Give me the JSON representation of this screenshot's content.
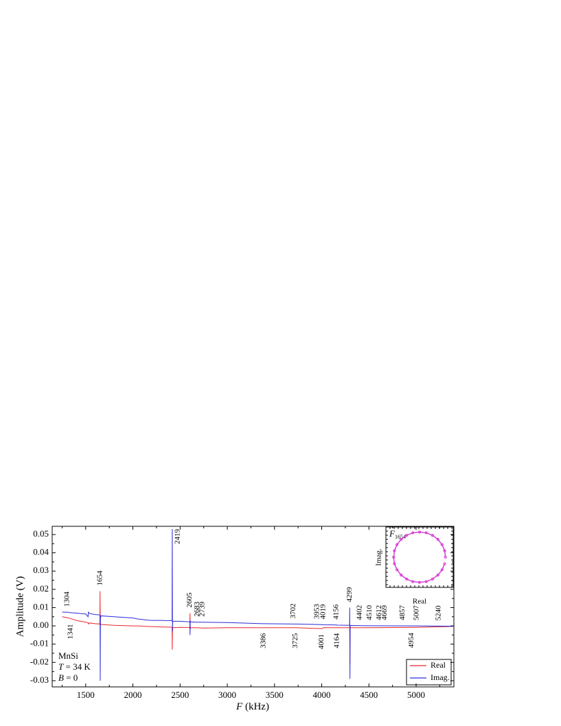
{
  "chart_data": [
    {
      "type": "line",
      "xlabel": "F (kHz)",
      "ylabel": "Amplitude (V)",
      "x": [
        1250,
        1304,
        1341,
        1400,
        1500,
        1525,
        1530,
        1540,
        1600,
        1650,
        1652,
        1654,
        1656,
        1660,
        1800,
        2000,
        2050,
        2100,
        2150,
        2200,
        2300,
        2415,
        2417,
        2419,
        2421,
        2425,
        2500,
        2600,
        2603,
        2605,
        2607,
        2610,
        2683,
        2739,
        3000,
        3386,
        3702,
        3725,
        4001,
        4019,
        4156,
        4164,
        4295,
        4297,
        4299,
        4301,
        4305,
        4500,
        5000,
        5400
      ],
      "series": [
        {
          "name": "Real",
          "color": "#e8262b",
          "values": [
            0.005,
            0.0045,
            0.004,
            0.003,
            0.002,
            0.0017,
            0.001,
            0.0016,
            0.0012,
            0.001,
            0.019,
            0.002,
            0.0005,
            0.0008,
            0.0003,
            0,
            0,
            -0.0002,
            -0.0003,
            -0.0004,
            -0.0006,
            -0.0007,
            -0.013,
            -0.003,
            -0.001,
            -0.001,
            -0.0008,
            -0.0009,
            -0.0009,
            0.007,
            -0.002,
            -0.001,
            -0.001,
            -0.0012,
            -0.001,
            -0.001,
            -0.001,
            -0.001,
            -0.0015,
            -0.001,
            -0.001,
            -0.001,
            -0.001,
            -0.001,
            -0.021,
            -0.0005,
            -0.001,
            -0.001,
            -0.0008,
            -0.0003
          ]
        },
        {
          "name": "Imag.",
          "color": "#2a2ad8",
          "values": [
            0.0075,
            0.0075,
            0.0072,
            0.007,
            0.0065,
            0.005,
            0.0075,
            0.0068,
            0.0062,
            0.006,
            0.006,
            -0.03,
            0.004,
            0.0055,
            0.005,
            0.0043,
            0.0038,
            0.0035,
            0.0032,
            0.003,
            0.003,
            0.0028,
            0.053,
            -0.003,
            0.002,
            0.0025,
            0.0025,
            0.0022,
            0.0022,
            -0.005,
            0.003,
            0.0022,
            0.002,
            0.002,
            0.0018,
            0.0012,
            0.001,
            0.001,
            0.0007,
            0.0006,
            0.0005,
            0.0004,
            0.0003,
            0.01,
            -0.029,
            0.0003,
            0.0002,
            0.0001,
            0,
            -0.0002
          ]
        }
      ],
      "xlim": [
        1145,
        5400
      ],
      "ylim": [
        -0.0334,
        0.0545
      ],
      "xticks": [
        1500,
        2000,
        2500,
        3000,
        3500,
        4000,
        4500,
        5000
      ],
      "yticks": [
        -0.03,
        -0.02,
        -0.01,
        {
          "value": 0,
          "label": "0.00"
        },
        0.01,
        0.02,
        0.03,
        0.04,
        0.05
      ],
      "legend": "lower right",
      "annotations": [
        "MnSi",
        "T = 34 K",
        "B = 0"
      ],
      "peaks_above": [
        1304,
        1654,
        2419,
        2605,
        2683,
        2739,
        3702,
        3953,
        4019,
        4156,
        4299,
        4402,
        4510,
        4612,
        4669,
        4857,
        5007,
        5240
      ],
      "peaks_below": [
        1341,
        3386,
        3725,
        4001,
        4164,
        4954
      ]
    },
    {
      "type": "scatter",
      "xlabel": "Real",
      "ylabel": "Imag.",
      "label": {
        "symbol": "F",
        "subscript": "1654"
      },
      "color": "#d63cd6",
      "x": [
        1,
        0.97,
        0.87,
        0.71,
        0.5,
        0.26,
        0,
        -0.26,
        -0.5,
        -0.71,
        -0.87,
        -0.97,
        -1,
        -0.97,
        -0.87,
        -0.71,
        -0.5,
        -0.26,
        0,
        0.26,
        0.5,
        0.71,
        0.87,
        0.97
      ],
      "values": [
        0,
        0.26,
        0.5,
        0.71,
        0.87,
        0.97,
        1,
        0.97,
        0.87,
        0.71,
        0.5,
        0.26,
        0,
        -0.26,
        -0.5,
        -0.71,
        -0.87,
        -0.97,
        -1,
        -0.97,
        -0.87,
        -0.71,
        -0.5,
        -0.26
      ],
      "xlim": [
        -1.3,
        1.3
      ],
      "ylim": [
        -1.2,
        1.2
      ]
    }
  ]
}
